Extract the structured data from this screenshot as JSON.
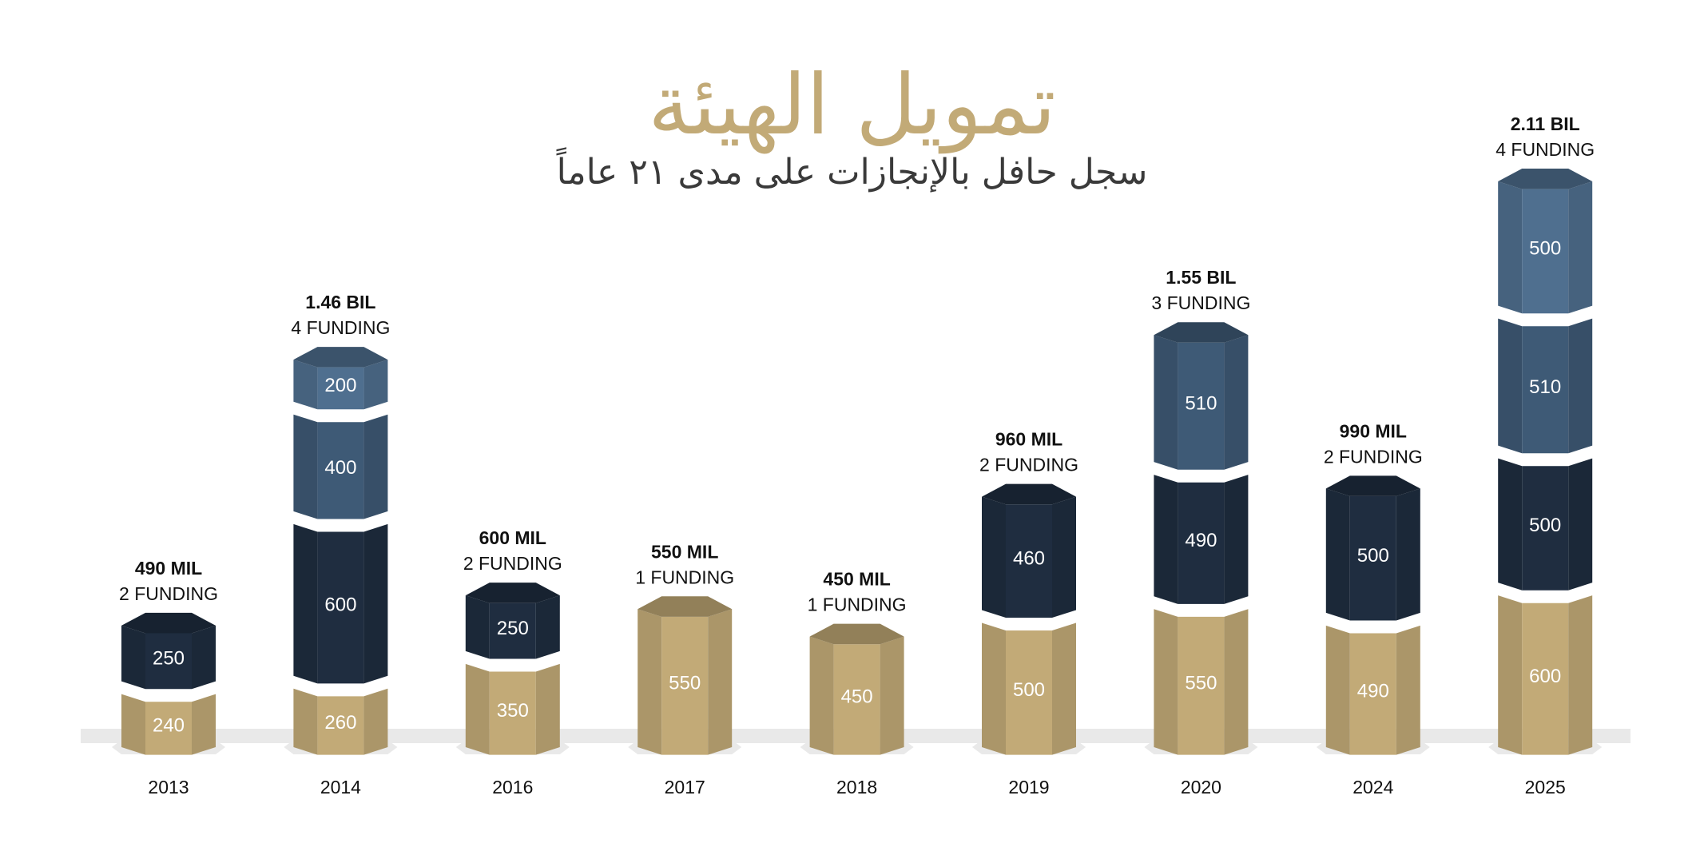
{
  "header": {
    "title": "تمويل الهيئة",
    "subtitle": "سجل حافل بالإنجازات على مدى ٢١ عاماً"
  },
  "colors": {
    "gold": "#c2aa77",
    "navy": "#1f2d40",
    "steel": "#3e5a76",
    "light_steel": "#4f6f8f",
    "floor": "#e9e9e9",
    "title_gold": "#c2aa77",
    "label_dark": "#111111"
  },
  "chart_data": {
    "type": "bar",
    "stacked": true,
    "title": "تمويل الهيئة",
    "subtitle": "سجل حافل بالإنجازات على مدى ٢١ عاماً",
    "unit_values": "MIL",
    "categories": [
      "2013",
      "2014",
      "2016",
      "2017",
      "2018",
      "2019",
      "2020",
      "2024",
      "2025"
    ],
    "bars": [
      {
        "year": "2013",
        "segments": [
          240,
          250
        ],
        "total_label": "490 MIL",
        "funding_label": "2 FUNDING"
      },
      {
        "year": "2014",
        "segments": [
          260,
          600,
          400,
          200
        ],
        "total_label": "1.46 BIL",
        "funding_label": "4 FUNDING"
      },
      {
        "year": "2016",
        "segments": [
          350,
          250
        ],
        "total_label": "600 MIL",
        "funding_label": "2 FUNDING"
      },
      {
        "year": "2017",
        "segments": [
          550
        ],
        "total_label": "550 MIL",
        "funding_label": "1 FUNDING"
      },
      {
        "year": "2018",
        "segments": [
          450
        ],
        "total_label": "450 MIL",
        "funding_label": "1 FUNDING"
      },
      {
        "year": "2019",
        "segments": [
          500,
          460
        ],
        "total_label": "960 MIL",
        "funding_label": "2 FUNDING"
      },
      {
        "year": "2020",
        "segments": [
          550,
          490,
          510
        ],
        "total_label": "1.55 BIL",
        "funding_label": "3 FUNDING"
      },
      {
        "year": "2024",
        "segments": [
          490,
          500
        ],
        "total_label": "990 MIL",
        "funding_label": "2 FUNDING"
      },
      {
        "year": "2025",
        "segments": [
          600,
          500,
          510,
          500
        ],
        "total_label": "2.11 BIL",
        "funding_label": "4 FUNDING"
      }
    ],
    "segment_colors": [
      "#c2aa77",
      "#1f2d40",
      "#3e5a76",
      "#4f6f8f"
    ],
    "grid": false,
    "legend": "none"
  }
}
